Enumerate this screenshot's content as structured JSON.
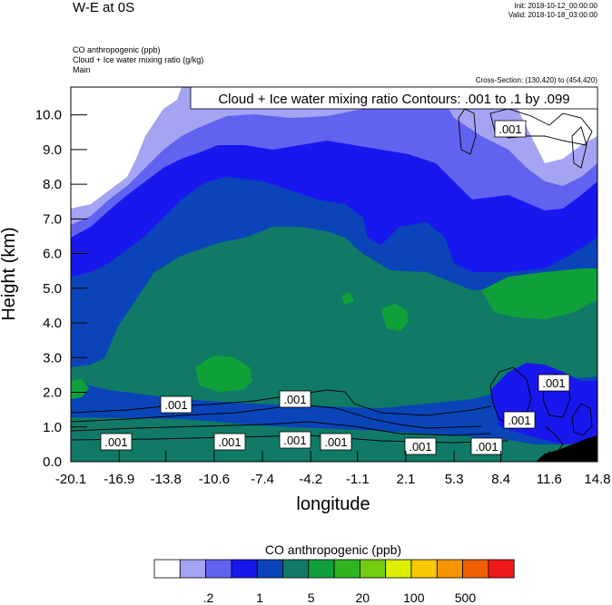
{
  "header": {
    "title": "W-E at 0S",
    "init": "Init: 2018-10-12_00:00:00",
    "valid": "Valid: 2018-10-18_03:00:00",
    "fields": [
      "CO anthropogenic   (ppb)",
      "Cloud + Ice water mixing ratio   (g/kg)",
      "Main"
    ],
    "cross_section": "Cross-Section: (130,420) to (454,420)"
  },
  "chart_data": {
    "type": "heatmap",
    "title": "W-E at 0S",
    "xlabel": "longitude",
    "ylabel": "Height (km)",
    "xlim": [
      -20.1,
      14.8
    ],
    "ylim": [
      0.0,
      10.8
    ],
    "x_ticks": [
      "-20.1",
      "-16.9",
      "-13.8",
      "-10.6",
      "-7.4",
      "-4.2",
      "-1.1",
      "2.1",
      "5.3",
      "8.4",
      "11.6",
      "14.8"
    ],
    "y_ticks": [
      "0.0",
      "1.0",
      "2.0",
      "3.0",
      "4.0",
      "5.0",
      "6.0",
      "7.0",
      "8.0",
      "9.0",
      "10.0"
    ],
    "contour_label": "Cloud + Ice water mixing ratio Contours: .001 to .1 by .099",
    "contour_values": [
      ".001",
      ".001",
      ".001",
      ".001",
      ".001",
      ".001",
      ".001",
      ".001",
      ".001",
      ".001",
      ".001",
      ".001",
      ".001"
    ],
    "colorbar": {
      "title": "CO anthropogenic  (ppb)",
      "labels": [
        ".2",
        "1",
        "5",
        "20",
        "100",
        "500"
      ],
      "colors": [
        "#ffffff",
        "#a4a4f2",
        "#6262f0",
        "#1818ee",
        "#0a44b8",
        "#107a66",
        "#10a03a",
        "#30b420",
        "#74cc10",
        "#dcf000",
        "#f8c800",
        "#f89400",
        "#f06000",
        "#ee1818"
      ]
    }
  },
  "colors": {
    "white": "#ffffff",
    "lavender": "#a4a4f2",
    "periwinkle": "#6262f0",
    "blue": "#1818ee",
    "dark_blue": "#0a44b8",
    "teal": "#107a66",
    "green": "#10a03a",
    "terrain": "#000000"
  }
}
